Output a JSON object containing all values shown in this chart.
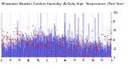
{
  "n_points": 365,
  "y_min": 0,
  "y_max": 100,
  "background_color": "#ffffff",
  "blue_color": "#2222cc",
  "red_color": "#cc2222",
  "grid_color": "#999999",
  "seed": 42,
  "n_grid_lines": 13,
  "title_fontsize": 2.8,
  "tick_fontsize": 2.2,
  "title_text": "Milwaukee Weather Outdoor Humidity At Daily High Temperature (Past Year)"
}
